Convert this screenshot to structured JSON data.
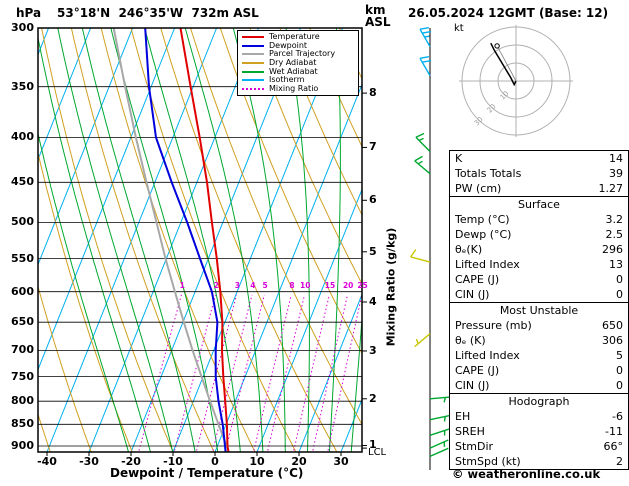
{
  "header": {
    "station_title": "53°18'N  246°35'W  732m ASL",
    "left_axis_unit": "hPa",
    "right_axis_unit_km": "km",
    "right_axis_unit_asl": "ASL",
    "date_title": "26.05.2024 12GMT (Base: 12)",
    "hodograph_unit": "kt",
    "copyright": "© weatheronline.co.uk"
  },
  "legend": {
    "items": [
      {
        "label": "Temperature",
        "color": "#e00000",
        "style": "solid"
      },
      {
        "label": "Dewpoint",
        "color": "#0000dd",
        "style": "solid"
      },
      {
        "label": "Parcel Trajectory",
        "color": "#a8a8a8",
        "style": "solid"
      },
      {
        "label": "Dry Adiabat",
        "color": "#d0a020",
        "style": "solid"
      },
      {
        "label": "Wet Adiabat",
        "color": "#00a830",
        "style": "solid"
      },
      {
        "label": "Isotherm",
        "color": "#00b0f0",
        "style": "solid"
      },
      {
        "label": "Mixing Ratio",
        "color": "#d800d8",
        "style": "dotted"
      }
    ]
  },
  "axes": {
    "xlabel": "Dewpoint / Temperature (°C)",
    "mixing_ratio_label": "Mixing Ratio (g/kg)",
    "lcl_label": "LCL",
    "pressure_ticks": [
      300,
      350,
      400,
      450,
      500,
      550,
      600,
      650,
      700,
      750,
      800,
      850,
      900
    ],
    "temp_ticks": [
      -40,
      -30,
      -20,
      -10,
      0,
      10,
      20,
      30
    ],
    "km_ticks": [
      1,
      2,
      3,
      4,
      5,
      6,
      7,
      8
    ],
    "mixing_ratio_values": [
      1,
      2,
      3,
      4,
      5,
      8,
      10,
      15,
      20,
      25
    ]
  },
  "chart_data": {
    "type": "line",
    "variant": "skew-t-log-p",
    "title": "53°18'N 246°35'W 732m ASL",
    "x_axis": {
      "label": "Dewpoint / Temperature (°C)",
      "units": "°C",
      "ticks": [
        -40,
        -30,
        -20,
        -10,
        0,
        10,
        20,
        30
      ],
      "surface_range": [
        -42,
        35
      ]
    },
    "y_axis": {
      "label": "hPa",
      "scale": "log",
      "top": 300,
      "bottom": 914,
      "ticks": [
        300,
        350,
        400,
        450,
        500,
        550,
        600,
        650,
        700,
        750,
        800,
        850,
        900
      ]
    },
    "series": [
      {
        "name": "Temperature",
        "color": "#e00000",
        "width": 2,
        "points_p_t": [
          [
            914,
            3.2
          ],
          [
            900,
            2.4
          ],
          [
            850,
            0.2
          ],
          [
            800,
            -2.4
          ],
          [
            750,
            -5.2
          ],
          [
            700,
            -8.0
          ],
          [
            650,
            -10.6
          ],
          [
            600,
            -14.0
          ],
          [
            550,
            -18.0
          ],
          [
            500,
            -22.6
          ],
          [
            450,
            -27.6
          ],
          [
            400,
            -33.6
          ],
          [
            350,
            -40.6
          ],
          [
            300,
            -48.6
          ]
        ]
      },
      {
        "name": "Dewpoint",
        "color": "#0000dd",
        "width": 2,
        "points_p_t": [
          [
            914,
            2.5
          ],
          [
            900,
            1.8
          ],
          [
            850,
            -0.8
          ],
          [
            800,
            -4.0
          ],
          [
            750,
            -7.0
          ],
          [
            700,
            -9.5
          ],
          [
            650,
            -11.8
          ],
          [
            600,
            -16.0
          ],
          [
            550,
            -22.0
          ],
          [
            500,
            -28.5
          ],
          [
            450,
            -36.0
          ],
          [
            400,
            -44.0
          ],
          [
            350,
            -50.5
          ],
          [
            300,
            -57.0
          ]
        ]
      },
      {
        "name": "Parcel Trajectory",
        "color": "#a8a8a8",
        "width": 2,
        "points_p_t": [
          [
            914,
            3.2
          ],
          [
            905,
            2.6
          ],
          [
            850,
            -1.8
          ],
          [
            800,
            -6.0
          ],
          [
            750,
            -10.4
          ],
          [
            700,
            -15.0
          ],
          [
            650,
            -19.8
          ],
          [
            600,
            -24.8
          ],
          [
            550,
            -30.2
          ],
          [
            500,
            -35.8
          ],
          [
            450,
            -42.0
          ],
          [
            400,
            -48.8
          ],
          [
            350,
            -56.2
          ],
          [
            300,
            -64.5
          ]
        ]
      }
    ],
    "background": {
      "isotherms_c": {
        "color": "#00b0f0",
        "start": -120,
        "end": 40,
        "step": 10
      },
      "dry_adiabats_theta_k": {
        "color": "#d0a020",
        "start": 230,
        "end": 390,
        "step": 10
      },
      "wet_adiabats_thetaw_c": {
        "color": "#00a830",
        "start": -15,
        "end": 35,
        "step": 5
      },
      "mixing_ratio_g_kg": {
        "color": "#d800d8",
        "values": [
          1,
          2,
          3,
          4,
          5,
          8,
          10,
          15,
          20,
          25
        ],
        "top_pressure": 595
      }
    },
    "lcl_pressure": 905,
    "wind_barbs": [
      {
        "p": 315,
        "speed_kt": 25,
        "dir_deg": 330,
        "color": "#00b0f0"
      },
      {
        "p": 340,
        "speed_kt": 20,
        "dir_deg": 330,
        "color": "#00b0f0"
      },
      {
        "p": 415,
        "speed_kt": 15,
        "dir_deg": 315,
        "color": "#00a830"
      },
      {
        "p": 440,
        "speed_kt": 15,
        "dir_deg": 310,
        "color": "#00a830"
      },
      {
        "p": 555,
        "speed_kt": 10,
        "dir_deg": 285,
        "color": "#c8c800"
      },
      {
        "p": 670,
        "speed_kt": 5,
        "dir_deg": 230,
        "color": "#c8c800"
      },
      {
        "p": 795,
        "speed_kt": 8,
        "dir_deg": 85,
        "color": "#00a830"
      },
      {
        "p": 840,
        "speed_kt": 6,
        "dir_deg": 78,
        "color": "#00a830"
      },
      {
        "p": 875,
        "speed_kt": 5,
        "dir_deg": 72,
        "color": "#00a830"
      },
      {
        "p": 905,
        "speed_kt": 5,
        "dir_deg": 66,
        "color": "#00a830"
      },
      {
        "p": 925,
        "speed_kt": 2,
        "dir_deg": 66,
        "color": "#00a830"
      }
    ]
  },
  "hodograph": {
    "rings_kt": [
      10,
      20,
      30
    ],
    "ring_labels": [
      "10",
      "20",
      "30"
    ],
    "trace_uv_kt": [
      [
        0,
        0
      ],
      [
        -1,
        -2
      ],
      [
        -3,
        2
      ],
      [
        -6,
        7
      ],
      [
        -9,
        12
      ],
      [
        -12,
        17
      ],
      [
        -14,
        21
      ]
    ],
    "marker_uv_kt": [
      -10.5,
      19.5
    ]
  },
  "stats": {
    "summary": {
      "rows": [
        {
          "label": "K",
          "value": "14"
        },
        {
          "label": "Totals Totals",
          "value": "39"
        },
        {
          "label": "PW (cm)",
          "value": "1.27"
        }
      ]
    },
    "surface": {
      "title": "Surface",
      "rows": [
        {
          "label": "Temp (°C)",
          "value": "3.2"
        },
        {
          "label": "Dewp (°C)",
          "value": "2.5"
        },
        {
          "label": "θₑ(K)",
          "value": "296"
        },
        {
          "label": "Lifted Index",
          "value": "13"
        },
        {
          "label": "CAPE (J)",
          "value": "0"
        },
        {
          "label": "CIN (J)",
          "value": "0"
        }
      ]
    },
    "most_unstable": {
      "title": "Most Unstable",
      "rows": [
        {
          "label": "Pressure (mb)",
          "value": "650"
        },
        {
          "label": "θₑ (K)",
          "value": "306"
        },
        {
          "label": "Lifted Index",
          "value": "5"
        },
        {
          "label": "CAPE (J)",
          "value": "0"
        },
        {
          "label": "CIN (J)",
          "value": "0"
        }
      ]
    },
    "hodograph": {
      "title": "Hodograph",
      "rows": [
        {
          "label": "EH",
          "value": "-6"
        },
        {
          "label": "SREH",
          "value": "-11"
        },
        {
          "label": "StmDir",
          "value": "66°"
        },
        {
          "label": "StmSpd (kt)",
          "value": "2"
        }
      ]
    }
  }
}
